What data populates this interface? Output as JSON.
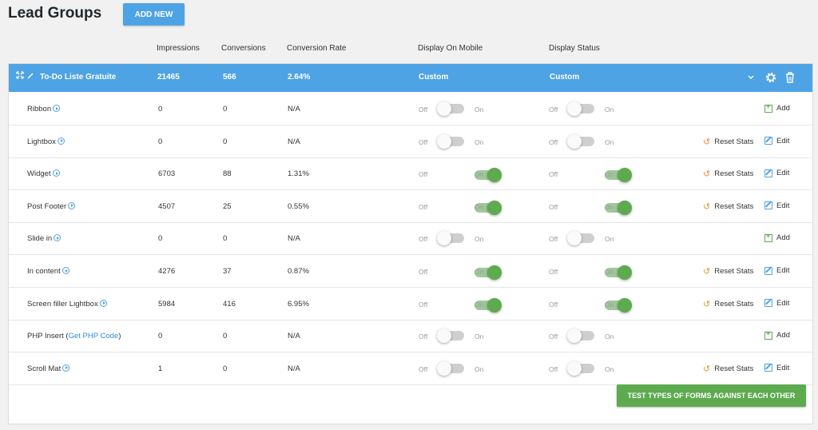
{
  "header": {
    "title": "Lead Groups",
    "add_new_label": "ADD NEW"
  },
  "columns": {
    "impressions": "Impressions",
    "conversions": "Conversions",
    "conversion_rate": "Conversion Rate",
    "display_on_mobile": "Display On Mobile",
    "display_status": "Display Status"
  },
  "group": {
    "name": "To-Do Liste Gratuite",
    "impressions": "21465",
    "conversions": "566",
    "rate": "2.64%",
    "mobile": "Custom",
    "status": "Custom"
  },
  "labels": {
    "off": "Off",
    "on": "On",
    "reset_stats": "Reset Stats",
    "edit": "Edit",
    "add": "Add"
  },
  "rows": [
    {
      "name": "Ribbon",
      "impressions": "0",
      "conversions": "0",
      "rate": "N/A",
      "mobile_on": false,
      "status_on": false,
      "actions": "add"
    },
    {
      "name": "Lightbox",
      "impressions": "0",
      "conversions": "0",
      "rate": "N/A",
      "mobile_on": false,
      "status_on": false,
      "actions": "reset-edit"
    },
    {
      "name": "Widget",
      "impressions": "6703",
      "conversions": "88",
      "rate": "1.31%",
      "mobile_on": true,
      "status_on": true,
      "actions": "reset-edit"
    },
    {
      "name": "Post Footer",
      "impressions": "4507",
      "conversions": "25",
      "rate": "0.55%",
      "mobile_on": true,
      "status_on": true,
      "actions": "reset-edit"
    },
    {
      "name": "Slide in",
      "impressions": "0",
      "conversions": "0",
      "rate": "N/A",
      "mobile_on": false,
      "status_on": false,
      "actions": "add"
    },
    {
      "name": "In content",
      "impressions": "4276",
      "conversions": "37",
      "rate": "0.87%",
      "mobile_on": true,
      "status_on": true,
      "actions": "reset-edit"
    },
    {
      "name": "Screen filler Lightbox",
      "impressions": "5984",
      "conversions": "416",
      "rate": "6.95%",
      "mobile_on": true,
      "status_on": true,
      "actions": "reset-edit"
    },
    {
      "name": "PHP Insert",
      "link": "Get PHP Code",
      "impressions": "0",
      "conversions": "0",
      "rate": "N/A",
      "mobile_on": false,
      "status_on": false,
      "actions": "add"
    },
    {
      "name": "Scroll Mat",
      "impressions": "1",
      "conversions": "0",
      "rate": "N/A",
      "mobile_on": false,
      "status_on": false,
      "actions": "reset-edit"
    }
  ],
  "footer": {
    "test_button_label": "TEST TYPES OF FORMS AGAINST EACH OTHER"
  },
  "colors": {
    "accent": "#4ea3e4",
    "success": "#5daa4f",
    "warning": "#e8912c"
  }
}
